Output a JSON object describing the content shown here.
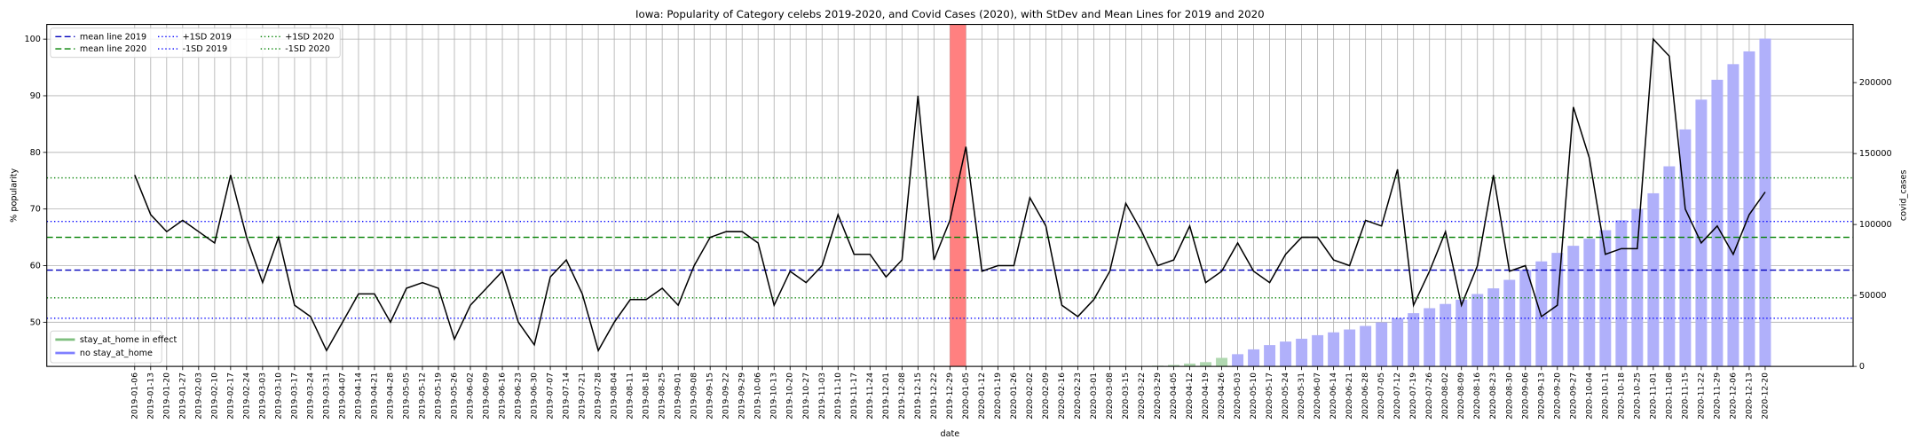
{
  "chart_data": {
    "type": "line",
    "title": "Iowa: Popularity of Category celebs 2019-2020, and Covid Cases (2020), with StDev and Mean Lines for 2019 and 2020",
    "xlabel": "date",
    "ylabel": "% popularity",
    "y2label": "covid_cases",
    "grid": true,
    "color": "#000000",
    "legend_loc": "upper left",
    "bar_legend_loc": "lower left",
    "categories": [
      "2019-01-06",
      "2019-01-13",
      "2019-01-20",
      "2019-01-27",
      "2019-02-03",
      "2019-02-10",
      "2019-02-17",
      "2019-02-24",
      "2019-03-03",
      "2019-03-10",
      "2019-03-17",
      "2019-03-24",
      "2019-03-31",
      "2019-04-07",
      "2019-04-14",
      "2019-04-21",
      "2019-04-28",
      "2019-05-05",
      "2019-05-12",
      "2019-05-19",
      "2019-05-26",
      "2019-06-02",
      "2019-06-09",
      "2019-06-16",
      "2019-06-23",
      "2019-06-30",
      "2019-07-07",
      "2019-07-14",
      "2019-07-21",
      "2019-07-28",
      "2019-08-04",
      "2019-08-11",
      "2019-08-18",
      "2019-08-25",
      "2019-09-01",
      "2019-09-08",
      "2019-09-15",
      "2019-09-22",
      "2019-09-29",
      "2019-10-06",
      "2019-10-13",
      "2019-10-20",
      "2019-10-27",
      "2019-11-03",
      "2019-11-10",
      "2019-11-17",
      "2019-11-24",
      "2019-12-01",
      "2019-12-08",
      "2019-12-15",
      "2019-12-22",
      "2019-12-29",
      "2020-01-05",
      "2020-01-12",
      "2020-01-19",
      "2020-01-26",
      "2020-02-02",
      "2020-02-09",
      "2020-02-16",
      "2020-02-23",
      "2020-03-01",
      "2020-03-08",
      "2020-03-15",
      "2020-03-22",
      "2020-03-29",
      "2020-04-05",
      "2020-04-12",
      "2020-04-19",
      "2020-04-26",
      "2020-05-03",
      "2020-05-10",
      "2020-05-17",
      "2020-05-24",
      "2020-05-31",
      "2020-06-07",
      "2020-06-14",
      "2020-06-21",
      "2020-06-28",
      "2020-07-05",
      "2020-07-12",
      "2020-07-19",
      "2020-07-26",
      "2020-08-02",
      "2020-08-09",
      "2020-08-16",
      "2020-08-23",
      "2020-08-30",
      "2020-09-06",
      "2020-09-13",
      "2020-09-20",
      "2020-09-27",
      "2020-10-04",
      "2020-10-11",
      "2020-10-18",
      "2020-10-25",
      "2020-11-01",
      "2020-11-08",
      "2020-11-15",
      "2020-11-22",
      "2020-11-29",
      "2020-12-06",
      "2020-12-13",
      "2020-12-20"
    ],
    "values": [
      76,
      69,
      66,
      68,
      66,
      64,
      76,
      65,
      57,
      65,
      53,
      51,
      45,
      50,
      55,
      55,
      50,
      56,
      57,
      56,
      47,
      53,
      56,
      59,
      50,
      46,
      58,
      61,
      55,
      45,
      50,
      54,
      54,
      56,
      53,
      60,
      65,
      66,
      66,
      64,
      53,
      59,
      57,
      60,
      69,
      62,
      62,
      58,
      61,
      90,
      61,
      68,
      81,
      59,
      60,
      60,
      72,
      67,
      53,
      51,
      54,
      59,
      71,
      66,
      60,
      61,
      67,
      57,
      59,
      64,
      59,
      57,
      62,
      65,
      65,
      61,
      60,
      68,
      67,
      77,
      53,
      59,
      66,
      53,
      60,
      76,
      59,
      60,
      51,
      53,
      88,
      79,
      62,
      63,
      63,
      100,
      97,
      70,
      64,
      67,
      62,
      69,
      73
    ],
    "ylim": [
      42.2,
      102.6
    ],
    "yticks": [
      50,
      60,
      70,
      80,
      90,
      100
    ],
    "y2lim": [
      0,
      241000
    ],
    "y2ticks": [
      0,
      50000,
      100000,
      150000,
      200000
    ],
    "hlines": [
      {
        "name": "mean line 2019",
        "value": 59.2,
        "color": "#0000bb",
        "style": "dashed"
      },
      {
        "name": "mean line 2020",
        "value": 65.0,
        "color": "#008000",
        "style": "dashed"
      },
      {
        "name": "+1SD 2019",
        "value": 67.8,
        "color": "#0000ff",
        "style": "dotted"
      },
      {
        "name": "-1SD 2019",
        "value": 50.7,
        "color": "#0000ff",
        "style": "dotted"
      },
      {
        "name": "+1SD 2020",
        "value": 75.5,
        "color": "#008000",
        "style": "dotted"
      },
      {
        "name": "-1SD 2020",
        "value": 54.3,
        "color": "#008000",
        "style": "dotted"
      }
    ],
    "spans": [
      {
        "start": "2019-12-29",
        "end": "2020-01-05",
        "color": "#ff8080"
      }
    ],
    "bar_series": [
      {
        "name": "stay_at_home in effect",
        "color": "#b0d8b0",
        "legend_color": "#7fbf7f",
        "axis": "y2",
        "values": [
          null,
          null,
          null,
          null,
          null,
          null,
          null,
          null,
          null,
          null,
          null,
          null,
          null,
          null,
          null,
          null,
          null,
          null,
          null,
          null,
          null,
          null,
          null,
          null,
          null,
          null,
          null,
          null,
          null,
          null,
          null,
          null,
          null,
          null,
          null,
          null,
          null,
          null,
          null,
          null,
          null,
          null,
          null,
          null,
          null,
          null,
          null,
          null,
          null,
          null,
          null,
          null,
          null,
          null,
          null,
          null,
          null,
          null,
          null,
          null,
          null,
          null,
          null,
          null,
          500,
          1000,
          2000,
          3000,
          6000,
          null,
          null,
          null,
          null,
          null,
          null,
          null,
          null,
          null,
          null,
          null,
          null,
          null,
          null,
          null,
          null,
          null,
          null,
          null,
          null,
          null,
          null,
          null,
          null,
          null,
          null,
          null,
          null,
          null,
          null,
          null,
          null,
          null,
          null
        ]
      },
      {
        "name": "no stay_at_home",
        "color": "#b0b0fa",
        "legend_color": "#7f7fff",
        "axis": "y2",
        "values": [
          null,
          null,
          null,
          null,
          null,
          null,
          null,
          null,
          null,
          null,
          null,
          null,
          null,
          null,
          null,
          null,
          null,
          null,
          null,
          null,
          null,
          null,
          null,
          null,
          null,
          null,
          null,
          null,
          null,
          null,
          null,
          null,
          null,
          null,
          null,
          null,
          null,
          null,
          null,
          null,
          null,
          null,
          null,
          null,
          null,
          null,
          null,
          null,
          null,
          null,
          null,
          null,
          null,
          null,
          null,
          null,
          null,
          null,
          null,
          null,
          null,
          null,
          null,
          null,
          null,
          null,
          null,
          null,
          null,
          8600,
          12000,
          15000,
          17500,
          19500,
          22000,
          24000,
          26000,
          28500,
          31000,
          34000,
          37500,
          41000,
          44000,
          47000,
          51000,
          55000,
          61000,
          68000,
          74000,
          80000,
          85000,
          90000,
          96000,
          103000,
          111000,
          122000,
          141000,
          167000,
          188000,
          202000,
          213000,
          222000,
          231000
        ]
      }
    ]
  }
}
